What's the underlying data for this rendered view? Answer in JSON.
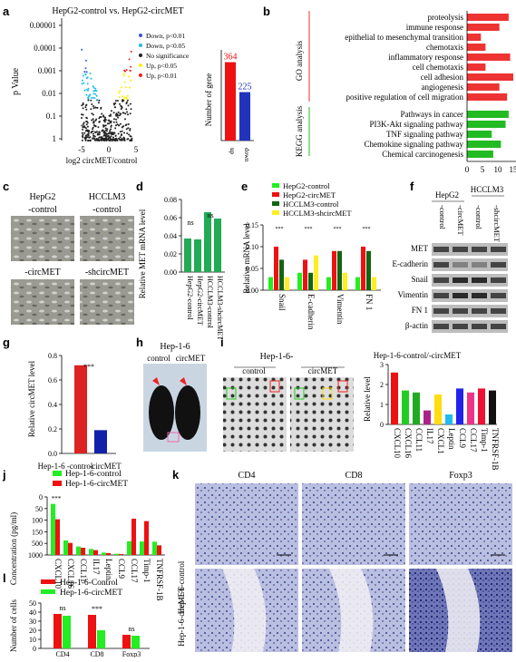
{
  "panels": {
    "a": {
      "label": "a",
      "title": "HepG2-control vs. HepG2-circMET",
      "ylabel": "p Value",
      "xlabel": "log2 circMET/control",
      "y_ticks": [
        "0.00001",
        "0.0001",
        "0.001",
        "0.01",
        "0.1",
        "1"
      ],
      "x_ticks": [
        "-5",
        "0",
        "5"
      ],
      "legend": [
        "Down, p<0.01",
        "Down, p<0.05",
        "No significance",
        "Up, p<0.05",
        "Up, p<0.01"
      ],
      "legend_colors": [
        "#3355dd",
        "#22bbee",
        "#222222",
        "#ffee00",
        "#ee2222"
      ],
      "bar_ylabel": "Number of gene",
      "bar_categories": [
        "up",
        "down"
      ],
      "bar_values": [
        364,
        225
      ],
      "bar_value_labels": [
        "364",
        "225"
      ],
      "bar_colors": [
        "#ee1111",
        "#2233bb"
      ]
    },
    "b": {
      "label": "b",
      "go_label": "GO analysis",
      "kegg_label": "KEGG analysis",
      "go_terms": [
        "proteolysis",
        "immune response",
        "epithelial to mesenchymal transition",
        "chemotaxis",
        "inflammatory response",
        "cell chemotaxis",
        "cell adhesion",
        "angiogenesis",
        "positive regulation of cell migration"
      ],
      "go_values": [
        13.5,
        10.5,
        4.5,
        6,
        14,
        6,
        15,
        10.5,
        13
      ],
      "kegg_terms": [
        "Pathways in cancer",
        "PI3K-Akt signaling pathway",
        "TNF signaling pathway",
        "Chemokine signaling pathway",
        "Chemical carcinogenesis"
      ],
      "kegg_values": [
        13.5,
        12.5,
        8,
        11,
        8.5
      ],
      "x_ticks": [
        "0",
        "5",
        "10",
        "15"
      ],
      "go_color": "#ee3333",
      "kegg_color": "#22bb22"
    },
    "c": {
      "label": "c",
      "headers": [
        "HepG2",
        "HCCLM3"
      ],
      "captions": [
        "-control",
        "-control",
        "-circMET",
        "-shcircMET"
      ]
    },
    "d": {
      "label": "d",
      "ylabel": "Relative MET mRNA level",
      "categories": [
        "HepG2-control",
        "HepG2-circMET",
        "HCCLM3-control",
        "HCCLM3-shcircMET"
      ],
      "values": [
        0.037,
        0.036,
        0.066,
        0.059
      ],
      "y_ticks": [
        "0.00",
        "0.02",
        "0.04",
        "0.06",
        "0.08"
      ],
      "sig": [
        "ns",
        "ns"
      ],
      "color": "#22aa55"
    },
    "e": {
      "label": "e",
      "ylabel": "Relative mRNA level",
      "legend": [
        "HepG2-control",
        "HepG2-circMET",
        "HCCLM3-control",
        "HCCLM3-shcircMET"
      ],
      "colors": [
        "#22ee22",
        "#ee1111",
        "#116611",
        "#ffee22"
      ],
      "categories": [
        "Snail",
        "E-cadherin",
        "Vimentin",
        "FN 1"
      ],
      "values": [
        [
          0.03,
          0.1,
          0.07,
          0.03
        ],
        [
          0.04,
          0.07,
          0.04,
          0.08
        ],
        [
          0.03,
          0.09,
          0.09,
          0.04
        ],
        [
          0.03,
          0.1,
          0.09,
          0.03
        ]
      ],
      "y_ticks": [
        "0.00",
        "0.05",
        "0.10",
        "0.15"
      ],
      "sig": "***"
    },
    "f": {
      "label": "f",
      "headers": [
        "HepG2",
        "HCCLM3"
      ],
      "lanes": [
        "-control",
        "-circMET",
        "-control",
        "-shcircMET"
      ],
      "proteins": [
        "MET",
        "E-cadherin",
        "Snail",
        "Vimentin",
        "FN 1",
        "β-actin"
      ]
    },
    "g": {
      "label": "g",
      "ylabel": "Relative circMET level",
      "categories": [
        "Hep-1-6 -control",
        "-circMET"
      ],
      "values": [
        0.72,
        0.19
      ],
      "y_ticks": [
        "0.0",
        "0.2",
        "0.4",
        "0.6",
        "0.8"
      ],
      "sig": "***",
      "colors": [
        "#dd2222",
        "#1122aa"
      ]
    },
    "h": {
      "label": "h",
      "title": "Hep-1-6",
      "captions": [
        "control",
        "circMET"
      ]
    },
    "i": {
      "label": "i",
      "title": "Hep-1-6-",
      "captions": [
        "control",
        "circMET"
      ],
      "chart_title": "Hep-1-6-control/-circMET",
      "ylabel": "Relative level",
      "categories": [
        "CXCL10",
        "CXCL16",
        "CCL11",
        "IL17",
        "CXCL1",
        "Leptin",
        "CCL9",
        "CCL17",
        "Timp-1",
        "TNFRSF-1B"
      ],
      "values": [
        2.6,
        1.7,
        1.6,
        0.7,
        1.5,
        0.5,
        1.8,
        1.6,
        1.8,
        1.7
      ],
      "colors": [
        "#ee1111",
        "#22cc22",
        "#22aa22",
        "#aa2288",
        "#ffdd11",
        "#22bbee",
        "#2222ee",
        "#ee3388",
        "#ee1133",
        "#111111"
      ],
      "y_ticks": [
        "0",
        "1",
        "2",
        "3"
      ]
    },
    "j": {
      "label": "j",
      "legend": [
        "Hep-1-6-control",
        "Hep-1-6-circMET"
      ],
      "colors": [
        "#22ee22",
        "#ee1111"
      ],
      "ylabel": "Concentration (pg/ml)",
      "y_ticks": [
        "1000",
        "500",
        "150",
        "100",
        "50",
        "0"
      ],
      "categories": [
        "CXCL10",
        "CXCL16",
        "CCL11",
        "IL17",
        "Leptin",
        "CCL9",
        "CCL17",
        "Timp-1",
        "TNFRSF-1B"
      ],
      "values_control": [
        900,
        60,
        35,
        25,
        10,
        5,
        170,
        165,
        55
      ],
      "values_circ": [
        600,
        50,
        30,
        20,
        8,
        4,
        150,
        140,
        40
      ],
      "sig": "***"
    },
    "k": {
      "label": "k",
      "columns": [
        "CD4",
        "CD8",
        "Foxp3"
      ],
      "rows": [
        "Hep-1-6-control",
        "Hep-1-6-circMET"
      ]
    },
    "l": {
      "label": "l",
      "legend": [
        "Hep-1-6-Control",
        "Hep-1-6-circMET"
      ],
      "colors": [
        "#ee1111",
        "#22ee22"
      ],
      "ylabel": "Number of cells",
      "categories": [
        "CD4",
        "CD8",
        "Foxp3"
      ],
      "values_control": [
        38,
        37,
        15
      ],
      "values_circ": [
        36,
        20,
        14
      ],
      "y_ticks": [
        "0",
        "10",
        "20",
        "30",
        "40",
        "50"
      ],
      "sig": [
        "ns",
        "***",
        "ns"
      ]
    }
  },
  "chart_data": [
    {
      "type": "bar",
      "title": "",
      "categories": [
        "up",
        "down"
      ],
      "values": [
        364,
        225
      ],
      "ylabel": "Number of gene"
    },
    {
      "type": "bar",
      "categories": [
        "HepG2-control",
        "HepG2-circMET",
        "HCCLM3-control",
        "HCCLM3-shcircMET"
      ],
      "values": [
        0.037,
        0.036,
        0.066,
        0.059
      ],
      "ylabel": "Relative MET mRNA level",
      "ylim": [
        0,
        0.08
      ]
    },
    {
      "type": "bar",
      "categories": [
        "Hep-1-6 -control",
        "-circMET"
      ],
      "values": [
        0.72,
        0.19
      ],
      "ylabel": "Relative circMET level",
      "ylim": [
        0,
        0.8
      ]
    },
    {
      "type": "bar",
      "title": "Hep-1-6-control/-circMET",
      "categories": [
        "CXCL10",
        "CXCL16",
        "CCL11",
        "IL17",
        "CXCL1",
        "Leptin",
        "CCL9",
        "CCL17",
        "Timp-1",
        "TNFRSF-1B"
      ],
      "values": [
        2.6,
        1.7,
        1.6,
        0.7,
        1.5,
        0.5,
        1.8,
        1.6,
        1.8,
        1.7
      ],
      "ylabel": "Relative level",
      "ylim": [
        0,
        3
      ]
    },
    {
      "type": "bar",
      "categories": [
        "CD4",
        "CD8",
        "Foxp3"
      ],
      "series": [
        {
          "name": "Hep-1-6-Control",
          "values": [
            38,
            37,
            15
          ]
        },
        {
          "name": "Hep-1-6-circMET",
          "values": [
            36,
            20,
            14
          ]
        }
      ],
      "ylabel": "Number of cells",
      "ylim": [
        0,
        50
      ]
    }
  ]
}
